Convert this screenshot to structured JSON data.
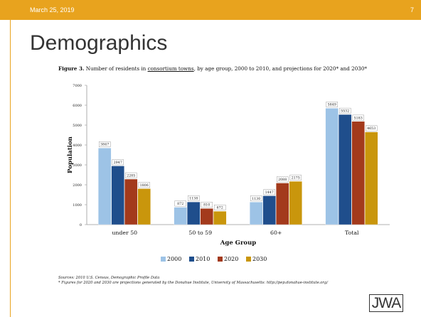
{
  "slide": {
    "date": "March 25, 2019",
    "page_number": "7",
    "title": "Demographics",
    "accent_color": "#e8a31e",
    "logo_text": "JWA"
  },
  "figure": {
    "label": "Figure 3.",
    "caption_pre": "Number of residents in ",
    "caption_link": "consortium towns",
    "caption_post": ", by age group, 2000 to 2010, and projections for 2020* and 2030*"
  },
  "sources": {
    "line1": "Sources: 2010 U.S. Census, Demographic Profile Data",
    "line2": "* Figures for 2020 and 2030 are projections generated by the Donahue Institute, University of Massachusetts: http://pep.donahue-institute.org/"
  },
  "chart_data": {
    "type": "bar",
    "title": "",
    "xlabel": "Age Group",
    "ylabel": "Population",
    "ylim": [
      0,
      7000
    ],
    "yticks": [
      0,
      1000,
      2000,
      3000,
      4000,
      5000,
      6000,
      7000
    ],
    "grid": false,
    "legend_position": "bottom",
    "categories": [
      "under 50",
      "50 to 59",
      "60+",
      "Total"
    ],
    "series": [
      {
        "name": "2000",
        "color": "#9dc3e6",
        "values": [
          3847,
          872,
          1130,
          5849
        ]
      },
      {
        "name": "2010",
        "color": "#1f4e8c",
        "values": [
          2947,
          1138,
          1447,
          5532
        ]
      },
      {
        "name": "2020",
        "color": "#a33a1c",
        "values": [
          2285,
          810,
          2088,
          5183
        ]
      },
      {
        "name": "2030",
        "color": "#c9960c",
        "values": [
          1806,
          672,
          2175,
          4653
        ]
      }
    ]
  }
}
